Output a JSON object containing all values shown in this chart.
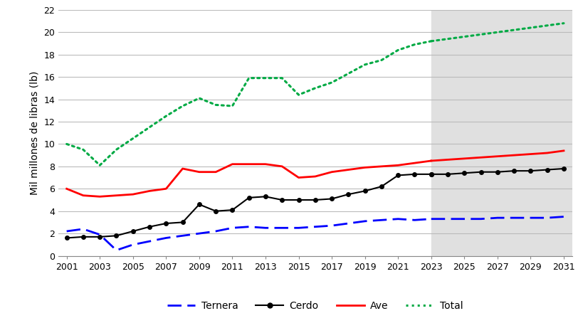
{
  "years_historical": [
    2001,
    2002,
    2003,
    2004,
    2005,
    2006,
    2007,
    2008,
    2009,
    2010,
    2011,
    2012,
    2013,
    2014,
    2015,
    2016,
    2017,
    2018,
    2019,
    2020,
    2021,
    2022,
    2023
  ],
  "years_forecast": [
    2023,
    2024,
    2025,
    2026,
    2027,
    2028,
    2029,
    2030,
    2031
  ],
  "ternera_hist": [
    2.2,
    2.4,
    1.9,
    0.5,
    1.0,
    1.3,
    1.6,
    1.8,
    2.0,
    2.2,
    2.5,
    2.6,
    2.5,
    2.5,
    2.5,
    2.6,
    2.7,
    2.9,
    3.1,
    3.2,
    3.3,
    3.2,
    3.3
  ],
  "ternera_fore": [
    3.3,
    3.3,
    3.3,
    3.3,
    3.4,
    3.4,
    3.4,
    3.4,
    3.5
  ],
  "cerdo_hist": [
    1.6,
    1.7,
    1.7,
    1.8,
    2.2,
    2.6,
    2.9,
    3.0,
    4.6,
    4.0,
    4.1,
    5.2,
    5.3,
    5.0,
    5.0,
    5.0,
    5.1,
    5.5,
    5.8,
    6.2,
    7.2,
    7.3,
    7.3
  ],
  "cerdo_fore": [
    7.3,
    7.3,
    7.4,
    7.5,
    7.5,
    7.6,
    7.6,
    7.7,
    7.8
  ],
  "ave_hist": [
    6.0,
    5.4,
    5.3,
    5.4,
    5.5,
    5.8,
    6.0,
    7.8,
    7.5,
    7.5,
    8.2,
    8.2,
    8.2,
    8.0,
    7.0,
    7.1,
    7.5,
    7.7,
    7.9,
    8.0,
    8.1,
    8.3,
    8.5
  ],
  "ave_fore": [
    8.5,
    8.6,
    8.7,
    8.8,
    8.9,
    9.0,
    9.1,
    9.2,
    9.4
  ],
  "total_hist": [
    10.0,
    9.5,
    8.1,
    9.5,
    10.5,
    11.5,
    12.5,
    13.4,
    14.1,
    13.5,
    13.4,
    15.9,
    15.9,
    15.9,
    14.4,
    15.0,
    15.5,
    16.3,
    17.1,
    17.5,
    18.4,
    18.9,
    19.2
  ],
  "total_fore": [
    19.2,
    19.4,
    19.6,
    19.8,
    20.0,
    20.2,
    20.4,
    20.6,
    20.8
  ],
  "shade_start": 2023,
  "shade_end": 2031.5,
  "xlim_left": 2001,
  "xlim_right": 2031.5,
  "ylim": [
    0,
    22
  ],
  "yticks": [
    0,
    2,
    4,
    6,
    8,
    10,
    12,
    14,
    16,
    18,
    20,
    22
  ],
  "xticks": [
    2001,
    2003,
    2005,
    2007,
    2009,
    2011,
    2013,
    2015,
    2017,
    2019,
    2021,
    2023,
    2025,
    2027,
    2029,
    2031
  ],
  "ylabel": "Mil millones de libras (lb)",
  "color_ternera": "#0000FF",
  "color_cerdo": "#000000",
  "color_ave": "#FF0000",
  "color_total": "#00AA44",
  "shade_color": "#E0E0E0",
  "legend_labels": [
    "Ternera",
    "Cerdo",
    "Ave",
    "Total"
  ],
  "bg_color": "#FFFFFF",
  "grid_color": "#BBBBBB"
}
